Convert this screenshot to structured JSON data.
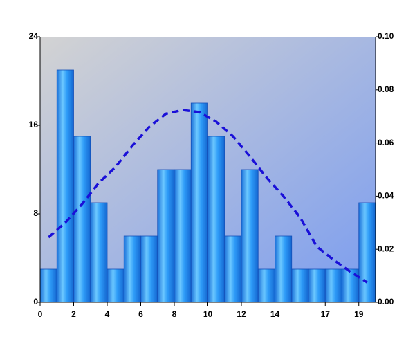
{
  "chart_data": {
    "type": "histogram",
    "bins": [
      0,
      1,
      2,
      3,
      4,
      5,
      6,
      7,
      8,
      9,
      10,
      11,
      12,
      13,
      14,
      15,
      16,
      17,
      18,
      19,
      20
    ],
    "counts": [
      3,
      21,
      15,
      9,
      3,
      6,
      6,
      12,
      12,
      18,
      15,
      6,
      12,
      3,
      6,
      3,
      3,
      3,
      3,
      9
    ],
    "color": "#1e8cf0",
    "xlim": [
      0,
      20
    ],
    "xticks": [
      0,
      2,
      4,
      6,
      8,
      10,
      12,
      14,
      17,
      19
    ],
    "ylim": [
      0,
      24
    ],
    "yticks": [
      0,
      8,
      16,
      24
    ],
    "y2lim": [
      0,
      0.1
    ],
    "y2ticks": [
      {
        "value": 0,
        "label": "0.00"
      },
      {
        "value": 0.02,
        "label": "0.02"
      },
      {
        "value": 0.04,
        "label": "0.04"
      },
      {
        "value": 0.06,
        "label": "0.06"
      },
      {
        "value": 0.08,
        "label": "0.08"
      },
      {
        "value": 0.1,
        "label": "0.10"
      }
    ],
    "series": [
      {
        "type": "line",
        "axis": "y2",
        "color": "#1a10d8",
        "dashed": true,
        "x": [
          0.5,
          1.5,
          2.5,
          3.5,
          4.5,
          5.5,
          6.5,
          7.5,
          8.5,
          9.5,
          10.5,
          11.5,
          12.5,
          13.5,
          14.5,
          15.5,
          16.5,
          17.5,
          18.5,
          19.5
        ],
        "values": [
          0.0245,
          0.03,
          0.037,
          0.045,
          0.051,
          0.059,
          0.066,
          0.071,
          0.0724,
          0.0716,
          0.068,
          0.0625,
          0.055,
          0.047,
          0.04,
          0.032,
          0.021,
          0.016,
          0.0115,
          0.0075
        ]
      }
    ]
  }
}
